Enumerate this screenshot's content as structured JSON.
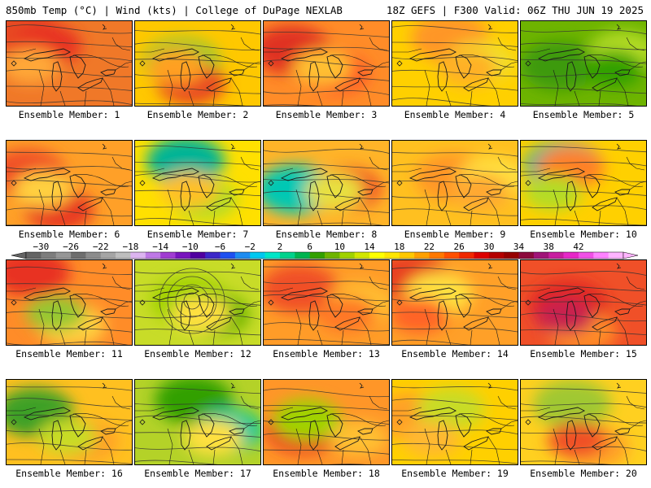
{
  "header": {
    "left": "850mb Temp (°C) | Wind (kts) | College of DuPage NEXLAB",
    "right": "18Z GEFS | F300 Valid: 06Z THU JUN 19 2025"
  },
  "colorbar": {
    "labels": [
      "−30",
      "−26",
      "−22",
      "−18",
      "−14",
      "−10",
      "−6",
      "−2",
      "2",
      "6",
      "10",
      "14",
      "18",
      "22",
      "26",
      "30",
      "34",
      "38",
      "42"
    ],
    "colors": [
      "#646464",
      "#7d7d7d",
      "#969696",
      "#6e6e6e",
      "#8c8c8c",
      "#a5a5a5",
      "#bebebe",
      "#dcb4f0",
      "#be78e6",
      "#a03cd2",
      "#7814be",
      "#5000a0",
      "#3c28c8",
      "#1e50f0",
      "#1e8cf0",
      "#00c8f0",
      "#00e6c8",
      "#00d28c",
      "#00b450",
      "#32a000",
      "#6eb400",
      "#a0d200",
      "#d2e600",
      "#ffff00",
      "#ffe600",
      "#ffc800",
      "#ffa000",
      "#ff7800",
      "#ff5000",
      "#f02800",
      "#dc0000",
      "#b40000",
      "#960000",
      "#8c0a3c",
      "#a01478",
      "#c81ea0",
      "#e628c8",
      "#f050e6",
      "#ff82ff",
      "#ffb4ff"
    ]
  },
  "panels": [
    {
      "label": "Ensemble Member: 1",
      "colors": {
        "bg": "#f07828",
        "blob1": "#e84820",
        "blob2": "#e83020",
        "blob3": "#ffa838"
      }
    },
    {
      "label": "Ensemble Member: 2",
      "colors": {
        "bg": "#ffc800",
        "blob1": "#96c832",
        "blob2": "#e84820",
        "blob3": "#ffa020"
      }
    },
    {
      "label": "Ensemble Member: 3",
      "colors": {
        "bg": "#ff8c28",
        "blob1": "#e03020",
        "blob2": "#ff5828",
        "blob3": "#ffc030"
      }
    },
    {
      "label": "Ensemble Member: 4",
      "colors": {
        "bg": "#ffd000",
        "blob1": "#ff9628",
        "blob2": "#f0e030",
        "blob3": "#ffb028"
      }
    },
    {
      "label": "Ensemble Member: 5",
      "colors": {
        "bg": "#6eb400",
        "blob1": "#3c9a10",
        "blob2": "#b4dc28",
        "blob3": "#32a000"
      }
    },
    {
      "label": "Ensemble Member: 6",
      "colors": {
        "bg": "#ffa028",
        "blob1": "#f05028",
        "blob2": "#e83820",
        "blob3": "#ffd040"
      }
    },
    {
      "label": "Ensemble Member: 7",
      "colors": {
        "bg": "#ffe000",
        "blob1": "#00b496",
        "blob2": "#b4dc28",
        "blob3": "#ffc028"
      }
    },
    {
      "label": "Ensemble Member: 8",
      "colors": {
        "bg": "#ffb428",
        "blob1": "#00c8b4",
        "blob2": "#f05028",
        "blob3": "#e8e040"
      }
    },
    {
      "label": "Ensemble Member: 9",
      "colors": {
        "bg": "#ffc020",
        "blob1": "#ff9628",
        "blob2": "#ffe040",
        "blob3": "#ffa830"
      }
    },
    {
      "label": "Ensemble Member: 10",
      "colors": {
        "bg": "#ffd000",
        "blob1": "#00b4a0",
        "blob2": "#ff8028",
        "blob3": "#b4dc28"
      }
    },
    {
      "label": "Ensemble Member: 11",
      "colors": {
        "bg": "#ff8c28",
        "blob1": "#e83020",
        "blob2": "#ffd040",
        "blob3": "#96c832"
      }
    },
    {
      "label": "Ensemble Member: 12",
      "colors": {
        "bg": "#c8dc28",
        "blob1": "#a0d200",
        "blob2": "#6eb400",
        "blob3": "#ffe040"
      }
    },
    {
      "label": "Ensemble Member: 13",
      "colors": {
        "bg": "#ff9c28",
        "blob1": "#f05028",
        "blob2": "#ffc030",
        "blob3": "#ff7828"
      }
    },
    {
      "label": "Ensemble Member: 14",
      "colors": {
        "bg": "#ffa028",
        "blob1": "#e84020",
        "blob2": "#ffe040",
        "blob3": "#ff6428"
      }
    },
    {
      "label": "Ensemble Member: 15",
      "colors": {
        "bg": "#f05028",
        "blob1": "#e02820",
        "blob2": "#ff8c28",
        "blob3": "#c82050"
      }
    },
    {
      "label": "Ensemble Member: 16",
      "colors": {
        "bg": "#ffc020",
        "blob1": "#3ca028",
        "blob2": "#ffa028",
        "blob3": "#c8dc28"
      }
    },
    {
      "label": "Ensemble Member: 17",
      "colors": {
        "bg": "#b4d228",
        "blob1": "#32a000",
        "blob2": "#00c8a0",
        "blob3": "#ffe040"
      }
    },
    {
      "label": "Ensemble Member: 18",
      "colors": {
        "bg": "#ff9628",
        "blob1": "#e83020",
        "blob2": "#a0d200",
        "blob3": "#ffc030"
      }
    },
    {
      "label": "Ensemble Member: 19",
      "colors": {
        "bg": "#ffd000",
        "blob1": "#ffa028",
        "blob2": "#c8dc28",
        "blob3": "#ffb830"
      }
    },
    {
      "label": "Ensemble Member: 20",
      "colors": {
        "bg": "#ffd020",
        "blob1": "#a0c832",
        "blob2": "#ffa028",
        "blob3": "#f05028"
      }
    }
  ]
}
